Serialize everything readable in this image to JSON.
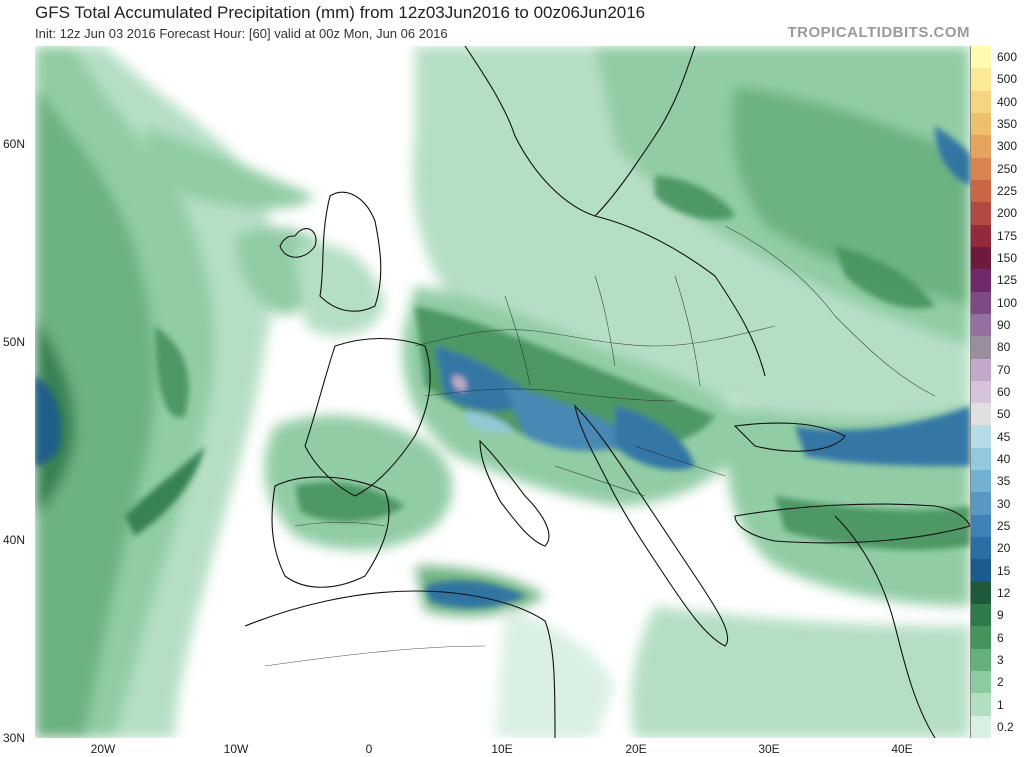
{
  "header": {
    "title": "GFS Total Accumulated Precipitation (mm) from 12z03Jun2016 to 00z06Jun2016",
    "subtitle": "Init: 12z Jun 03 2016   Forecast Hour: [60]   valid at 00z Mon, Jun 06 2016",
    "brand": "TROPICALTIDBITS.COM"
  },
  "axes": {
    "lat_labels": [
      "60N",
      "50N",
      "40N",
      "30N"
    ],
    "lon_labels": [
      "20W",
      "10W",
      "0",
      "10E",
      "20E",
      "30E",
      "40E"
    ]
  },
  "legend": {
    "levels": [
      {
        "label": "600",
        "color": "#fffcb0"
      },
      {
        "label": "500",
        "color": "#fbe996"
      },
      {
        "label": "400",
        "color": "#f5d482"
      },
      {
        "label": "350",
        "color": "#eebf6f"
      },
      {
        "label": "300",
        "color": "#e4a45e"
      },
      {
        "label": "250",
        "color": "#d8844f"
      },
      {
        "label": "225",
        "color": "#c86645"
      },
      {
        "label": "200",
        "color": "#b24a40"
      },
      {
        "label": "175",
        "color": "#922a3c"
      },
      {
        "label": "150",
        "color": "#6e1a3e"
      },
      {
        "label": "125",
        "color": "#6e2a6a"
      },
      {
        "label": "100",
        "color": "#7d4a86"
      },
      {
        "label": "90",
        "color": "#9470a0"
      },
      {
        "label": "80",
        "color": "#9a8e9e"
      },
      {
        "label": "70",
        "color": "#c3a8cc"
      },
      {
        "label": "60",
        "color": "#d6c4dc"
      },
      {
        "label": "50",
        "color": "#e0e0e0"
      },
      {
        "label": "45",
        "color": "#b6dce8"
      },
      {
        "label": "40",
        "color": "#94c8dc"
      },
      {
        "label": "35",
        "color": "#74b0d0"
      },
      {
        "label": "30",
        "color": "#5a98c4"
      },
      {
        "label": "25",
        "color": "#3f82b6"
      },
      {
        "label": "20",
        "color": "#2a6ea6"
      },
      {
        "label": "15",
        "color": "#1b5c8e"
      },
      {
        "label": "12",
        "color": "#1e5a3a"
      },
      {
        "label": "9",
        "color": "#2e7a4c"
      },
      {
        "label": "6",
        "color": "#46935e"
      },
      {
        "label": "3",
        "color": "#66ae7c"
      },
      {
        "label": "2",
        "color": "#8ccaa0"
      },
      {
        "label": "1",
        "color": "#b2dec2"
      },
      {
        "label": "0.2",
        "color": "#d8f0e2"
      }
    ]
  }
}
